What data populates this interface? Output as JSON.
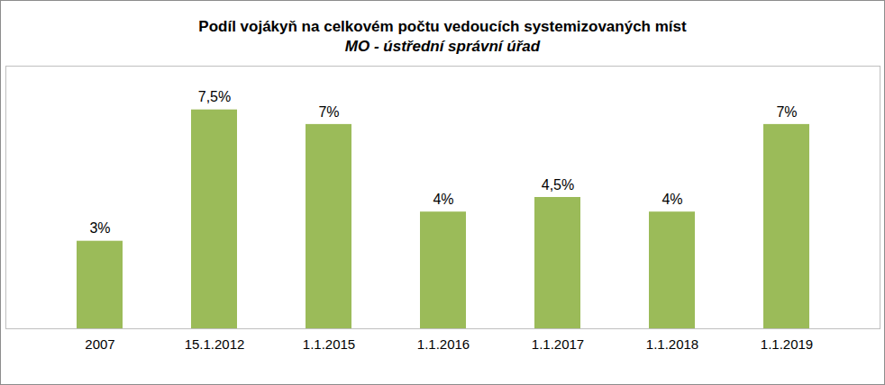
{
  "chart_data": {
    "type": "bar",
    "title": "Podíl vojákyň na celkovém počtu vedoucích systemizovaných míst",
    "subtitle": "MO - ústřední správní úřad",
    "categories": [
      "2007",
      "15.1.2012",
      "1.1.2015",
      "1.1.2016",
      "1.1.2017",
      "1.1.2018",
      "1.1.2019"
    ],
    "values": [
      3,
      7.5,
      7,
      4,
      4.5,
      4,
      7
    ],
    "value_labels": [
      "3%",
      "7,5%",
      "7%",
      "4%",
      "4,5%",
      "4%",
      "7%"
    ],
    "color": "#9bbb59",
    "ylim": [
      0,
      9
    ],
    "grid": false,
    "data_labels": true,
    "tick_labels": "x"
  }
}
